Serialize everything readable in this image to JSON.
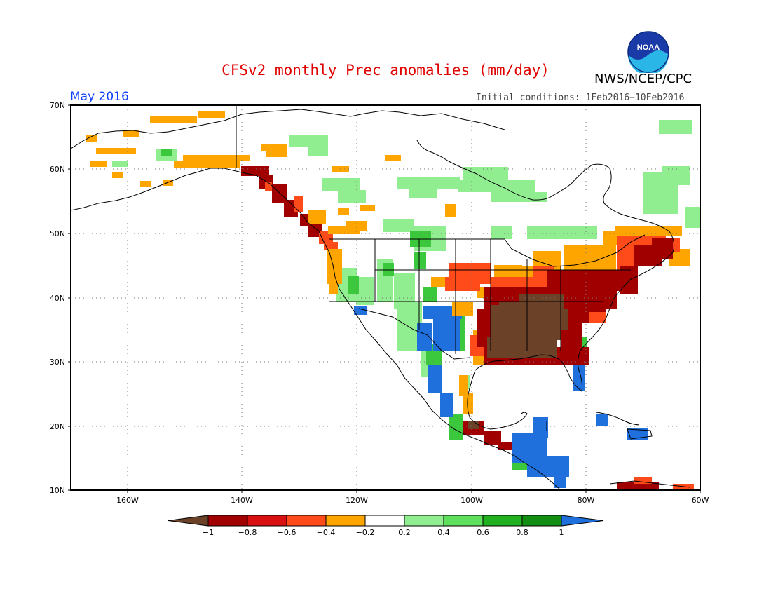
{
  "title": "CFSv2 monthly Prec anomalies (mm/day)",
  "agency": "NWS/NCEP/CPC",
  "logo_text": "NOAA",
  "valid_month": "May 2016",
  "initial_conditions": "Initial conditions: 1Feb2016−10Feb2016",
  "map": {
    "projection": "lat-lon",
    "lon_range": [
      -172,
      -60
    ],
    "lat_range": [
      10,
      70
    ],
    "lat_labels": [
      "70N",
      "60N",
      "50N",
      "40N",
      "30N",
      "20N",
      "10N"
    ],
    "lon_labels": [
      "160W",
      "140W",
      "120W",
      "100W",
      "80W",
      "60W"
    ],
    "grid": "dotted",
    "anomaly_regions": [
      {
        "name": "Southeast US",
        "center": [
          -90,
          35
        ],
        "category": "below -1"
      },
      {
        "name": "Ohio Valley / Mid-Atlantic",
        "center": [
          -82,
          40
        ],
        "category": "-1 to -0.8"
      },
      {
        "name": "Northeast US / Maritimes",
        "center": [
          -72,
          45
        ],
        "category": "-0.8 to -0.4"
      },
      {
        "name": "Gulf of Alaska coast",
        "center": [
          -133,
          56
        ],
        "category": "-1 to -0.8"
      },
      {
        "name": "Pacific Northwest coast",
        "center": [
          -124,
          47
        ],
        "category": "-0.8 to -0.6"
      },
      {
        "name": "Southern Plains / New Mexico",
        "center": [
          -105,
          33
        ],
        "category": "above 1"
      },
      {
        "name": "Florida peninsula",
        "center": [
          -81,
          28
        ],
        "category": "above 1"
      },
      {
        "name": "Central America",
        "center": [
          -87,
          14
        ],
        "category": "above 1"
      },
      {
        "name": "Caribbean / Cuba",
        "center": [
          -78,
          21
        ],
        "category": "above 1"
      },
      {
        "name": "Northern Rockies / Canadian Prairies",
        "center": [
          -110,
          48
        ],
        "category": "0.2 to 0.8"
      },
      {
        "name": "Quebec / Labrador",
        "center": [
          -68,
          57
        ],
        "category": "0.2 to 0.4"
      },
      {
        "name": "Alaska interior",
        "center": [
          -150,
          64
        ],
        "category": "-0.4 to -0.2"
      },
      {
        "name": "Mexico Pacific coast",
        "center": [
          -102,
          18
        ],
        "category": "-1 to -0.6"
      }
    ]
  },
  "colorbar": {
    "labels": [
      "−1",
      "−0.8",
      "−0.6",
      "−0.4",
      "−0.2",
      "0.2",
      "0.4",
      "0.6",
      "0.8",
      "1"
    ],
    "colors": [
      "#6b4228",
      "#a00000",
      "#d81010",
      "#ff4a1a",
      "#ffa500",
      "#ffffff",
      "#90ee90",
      "#5ee05e",
      "#20b020",
      "#128f12",
      "#1f6fdc"
    ]
  }
}
